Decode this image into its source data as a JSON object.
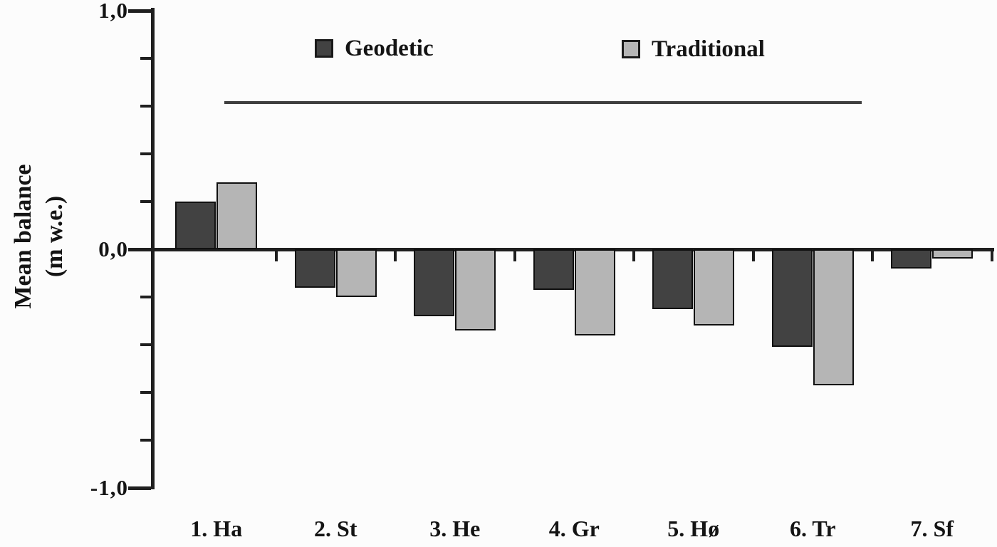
{
  "chart_data": {
    "type": "bar",
    "title": "",
    "ylabel_line1": "Mean balance",
    "ylabel_line2": "(m w.e.)",
    "categories": [
      "1. Ha",
      "2. St",
      "3. He",
      "4. Gr",
      "5. Hø",
      "6. Tr",
      "7. Sf"
    ],
    "series": [
      {
        "name": "Geodetic",
        "color": "#424242",
        "values": [
          0.2,
          -0.16,
          -0.28,
          -0.17,
          -0.25,
          -0.41,
          -0.08
        ]
      },
      {
        "name": "Traditional",
        "color": "#b5b5b5",
        "values": [
          0.28,
          -0.2,
          -0.34,
          -0.36,
          -0.32,
          -0.57,
          -0.04
        ]
      }
    ],
    "ylim": [
      -1.0,
      1.0
    ],
    "y_axis": {
      "major_ticks": [
        {
          "value": 1.0,
          "label": "1,0"
        },
        {
          "value": 0.0,
          "label": "0,0"
        },
        {
          "value": -1.0,
          "label": "-1,0"
        }
      ],
      "minor_tick_values": [
        0.8,
        0.6,
        0.4,
        0.2,
        -0.2,
        -0.4,
        -0.6,
        -0.8
      ],
      "decimal_separator": ","
    },
    "grid": false,
    "legend_position": "top",
    "annotation_line": {
      "y_value": 0.615
    }
  },
  "legend": {
    "items": [
      {
        "label": "Geodetic"
      },
      {
        "label": "Traditional"
      }
    ]
  }
}
